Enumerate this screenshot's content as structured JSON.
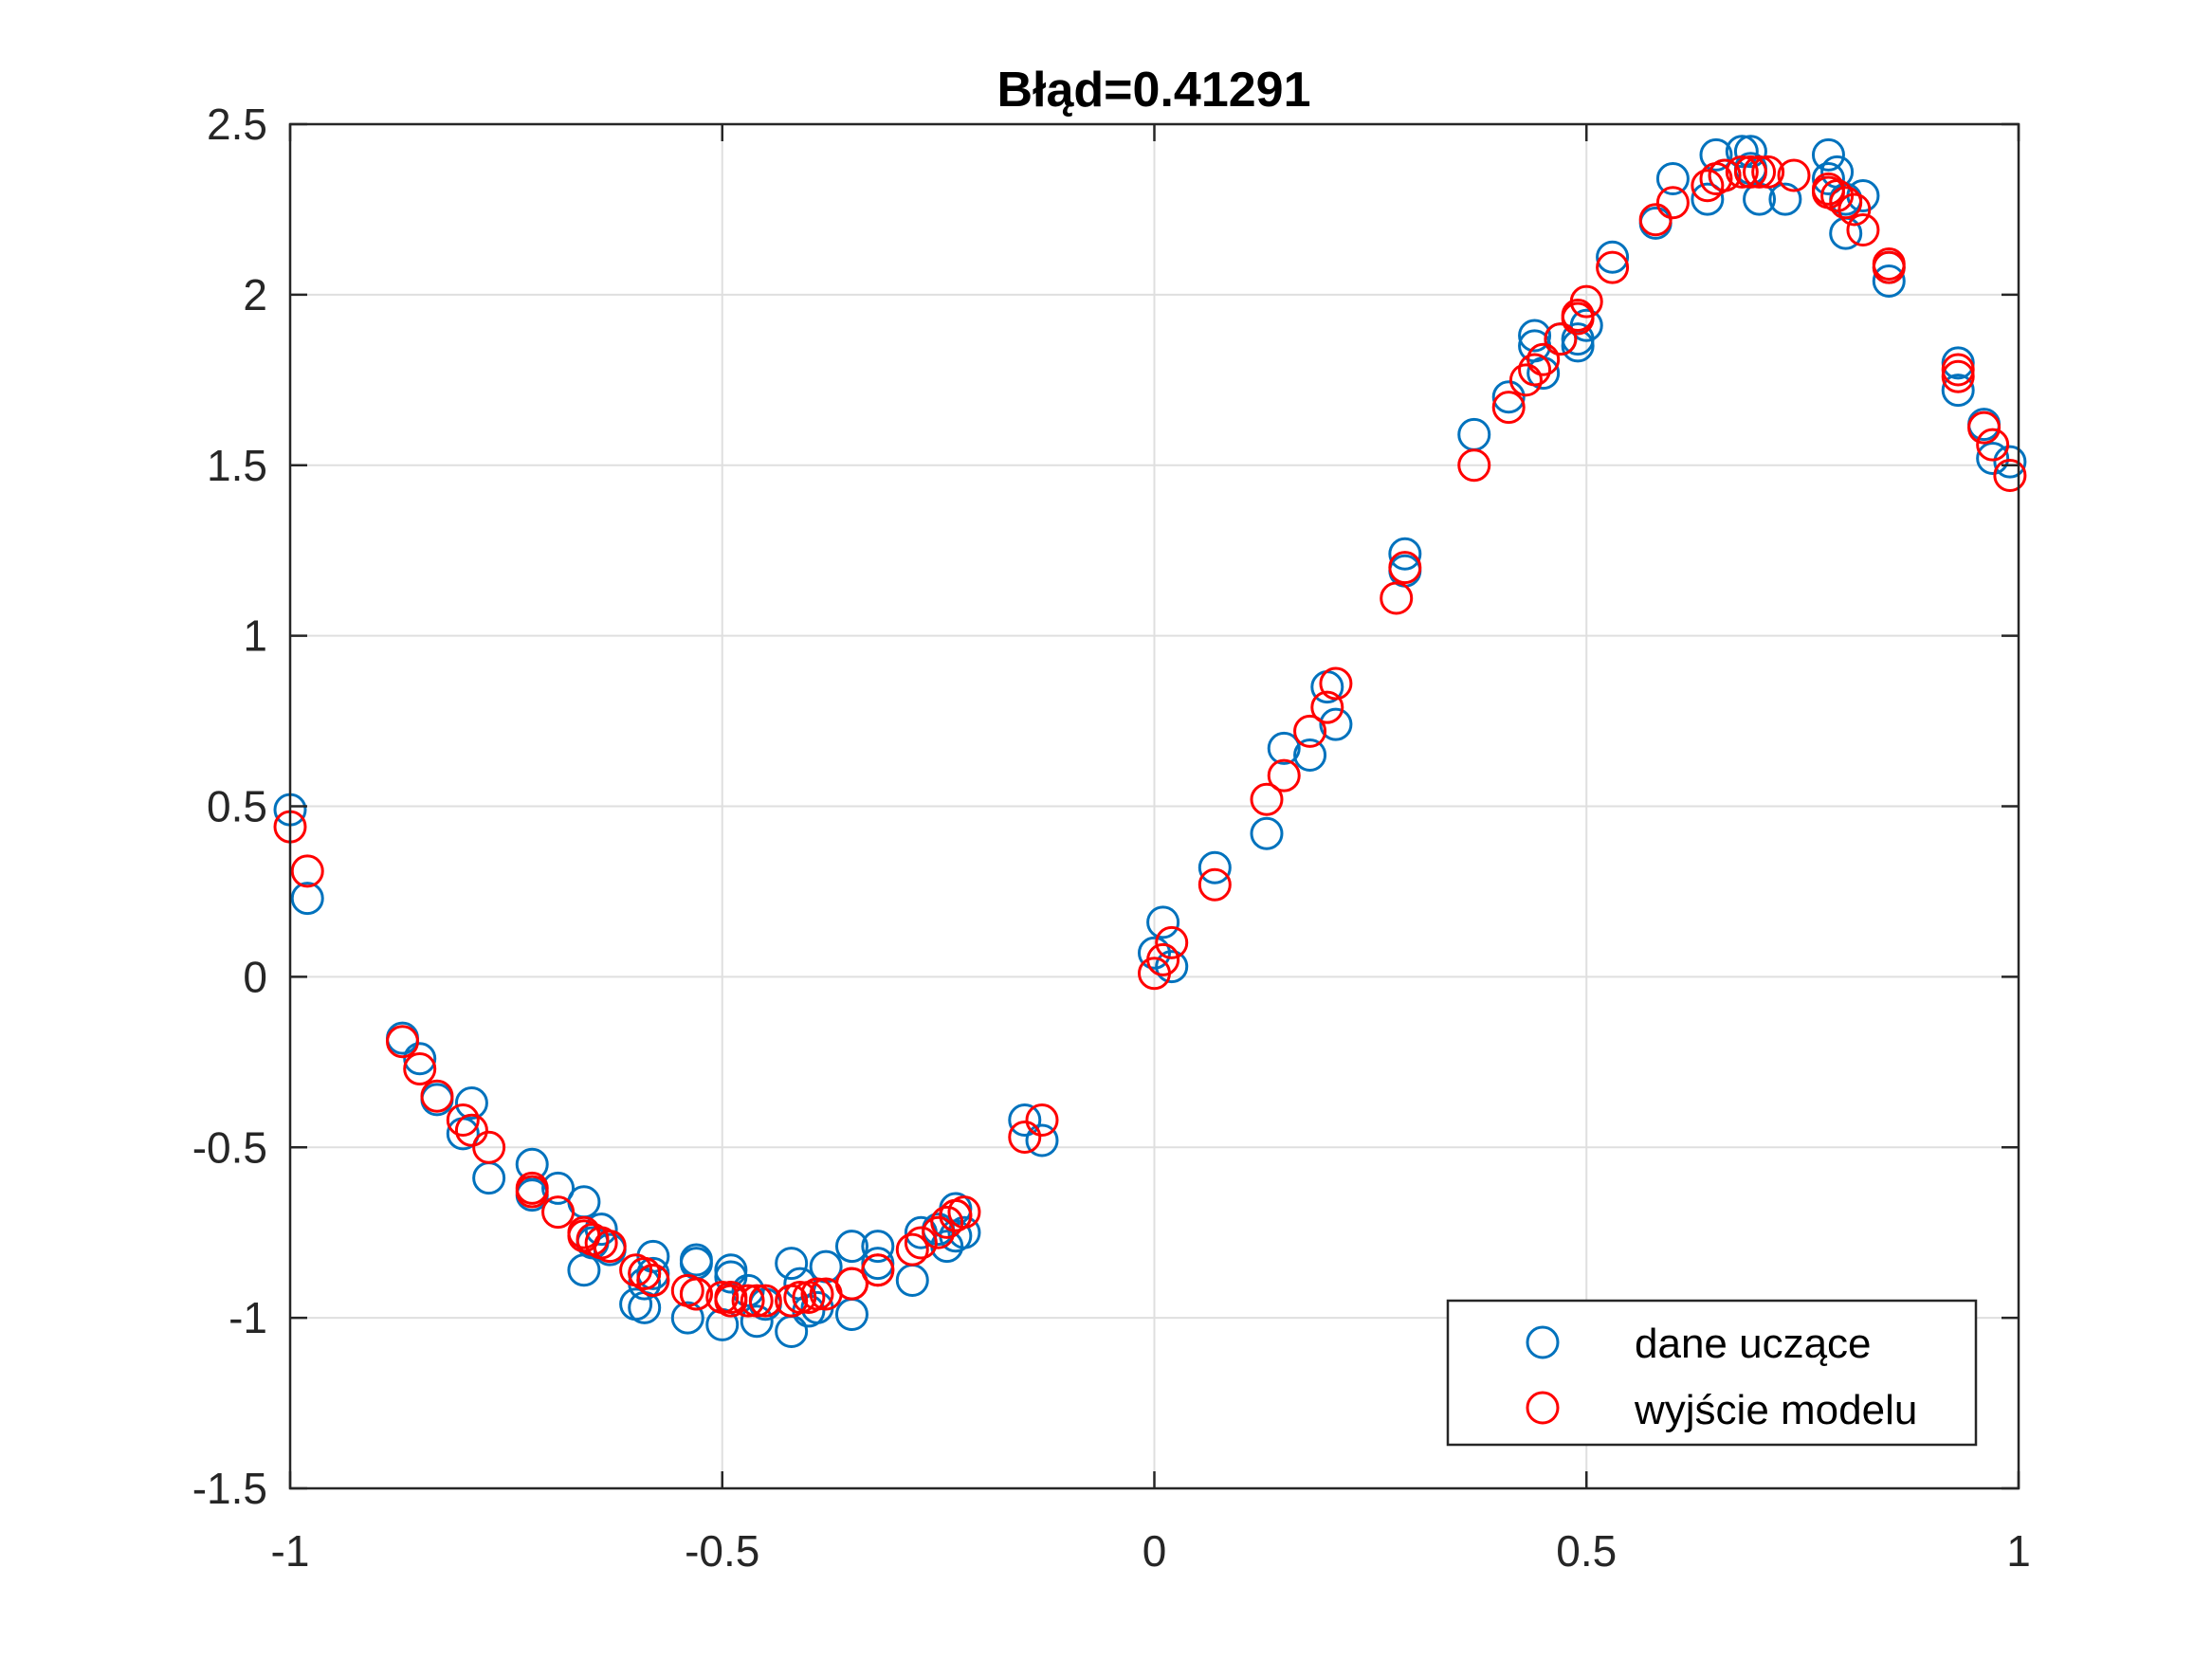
{
  "chart_data": {
    "type": "scatter",
    "title": "Błąd=0.41291",
    "xlabel": "",
    "ylabel": "",
    "xlim": [
      -1,
      1
    ],
    "ylim": [
      -1.5,
      2.5
    ],
    "xticks": [
      -1,
      -0.5,
      0,
      0.5,
      1
    ],
    "xtick_labels": [
      "-1",
      "-0.5",
      "0",
      "0.5",
      "1"
    ],
    "yticks": [
      -1.5,
      -1,
      -0.5,
      0,
      0.5,
      1,
      1.5,
      2,
      2.5
    ],
    "ytick_labels": [
      "-1.5",
      "-1",
      "-0.5",
      "0",
      "0.5",
      "1",
      "1.5",
      "2",
      "2.5"
    ],
    "grid": true,
    "legend_position": "bottom-right",
    "series": [
      {
        "name": "dane uczące",
        "color": "#0072BD",
        "marker": "circle",
        "points": [
          [
            -1.0,
            0.49
          ],
          [
            -0.98,
            0.23
          ],
          [
            -0.87,
            -0.18
          ],
          [
            -0.85,
            -0.24
          ],
          [
            -0.83,
            -0.36
          ],
          [
            -0.8,
            -0.46
          ],
          [
            -0.79,
            -0.37
          ],
          [
            -0.77,
            -0.59
          ],
          [
            -0.72,
            -0.55
          ],
          [
            -0.72,
            -0.64
          ],
          [
            -0.69,
            -0.62
          ],
          [
            -0.66,
            -0.66
          ],
          [
            -0.66,
            -0.86
          ],
          [
            -0.65,
            -0.78
          ],
          [
            -0.64,
            -0.74
          ],
          [
            -0.63,
            -0.8
          ],
          [
            -0.6,
            -0.96
          ],
          [
            -0.59,
            -0.9
          ],
          [
            -0.59,
            -0.97
          ],
          [
            -0.58,
            -0.82
          ],
          [
            -0.58,
            -0.87
          ],
          [
            -0.54,
            -1.0
          ],
          [
            -0.53,
            -0.83
          ],
          [
            -0.53,
            -0.84
          ],
          [
            -0.5,
            -1.02
          ],
          [
            -0.49,
            -0.88
          ],
          [
            -0.49,
            -0.86
          ],
          [
            -0.47,
            -0.92
          ],
          [
            -0.46,
            -1.01
          ],
          [
            -0.45,
            -0.96
          ],
          [
            -0.42,
            -0.84
          ],
          [
            -0.42,
            -1.04
          ],
          [
            -0.41,
            -0.9
          ],
          [
            -0.4,
            -0.98
          ],
          [
            -0.39,
            -0.97
          ],
          [
            -0.38,
            -0.85
          ],
          [
            -0.35,
            -0.79
          ],
          [
            -0.35,
            -0.99
          ],
          [
            -0.32,
            -0.79
          ],
          [
            -0.32,
            -0.84
          ],
          [
            -0.28,
            -0.89
          ],
          [
            -0.27,
            -0.75
          ],
          [
            -0.25,
            -0.74
          ],
          [
            -0.24,
            -0.79
          ],
          [
            -0.23,
            -0.76
          ],
          [
            -0.23,
            -0.68
          ],
          [
            -0.22,
            -0.75
          ],
          [
            -0.15,
            -0.42
          ],
          [
            -0.13,
            -0.48
          ],
          [
            0.0,
            0.07
          ],
          [
            0.01,
            0.16
          ],
          [
            0.02,
            0.03
          ],
          [
            0.07,
            0.32
          ],
          [
            0.13,
            0.42
          ],
          [
            0.15,
            0.67
          ],
          [
            0.18,
            0.65
          ],
          [
            0.2,
            0.85
          ],
          [
            0.21,
            0.74
          ],
          [
            0.29,
            1.24
          ],
          [
            0.29,
            1.19
          ],
          [
            0.37,
            1.59
          ],
          [
            0.41,
            1.7
          ],
          [
            0.44,
            1.88
          ],
          [
            0.44,
            1.85
          ],
          [
            0.45,
            1.77
          ],
          [
            0.47,
            1.87
          ],
          [
            0.49,
            1.85
          ],
          [
            0.49,
            1.87
          ],
          [
            0.5,
            1.91
          ],
          [
            0.53,
            2.11
          ],
          [
            0.58,
            2.21
          ],
          [
            0.6,
            2.34
          ],
          [
            0.64,
            2.28
          ],
          [
            0.65,
            2.41
          ],
          [
            0.66,
            2.35
          ],
          [
            0.68,
            2.42
          ],
          [
            0.69,
            2.37
          ],
          [
            0.69,
            2.42
          ],
          [
            0.7,
            2.28
          ],
          [
            0.73,
            2.28
          ],
          [
            0.78,
            2.34
          ],
          [
            0.78,
            2.41
          ],
          [
            0.79,
            2.36
          ],
          [
            0.8,
            2.18
          ],
          [
            0.8,
            2.28
          ],
          [
            0.82,
            2.29
          ],
          [
            0.85,
            2.08
          ],
          [
            0.85,
            2.04
          ],
          [
            0.93,
            1.8
          ],
          [
            0.93,
            1.72
          ],
          [
            0.96,
            1.62
          ],
          [
            0.97,
            1.52
          ],
          [
            0.99,
            1.51
          ]
        ]
      },
      {
        "name": "wyjście modelu",
        "color": "#FF0000",
        "marker": "circle",
        "points": [
          [
            -1.0,
            0.44
          ],
          [
            -0.98,
            0.31
          ],
          [
            -0.87,
            -0.19
          ],
          [
            -0.85,
            -0.27
          ],
          [
            -0.83,
            -0.35
          ],
          [
            -0.8,
            -0.42
          ],
          [
            -0.79,
            -0.45
          ],
          [
            -0.77,
            -0.5
          ],
          [
            -0.72,
            -0.62
          ],
          [
            -0.72,
            -0.63
          ],
          [
            -0.69,
            -0.69
          ],
          [
            -0.66,
            -0.75
          ],
          [
            -0.66,
            -0.76
          ],
          [
            -0.65,
            -0.77
          ],
          [
            -0.64,
            -0.78
          ],
          [
            -0.63,
            -0.79
          ],
          [
            -0.6,
            -0.86
          ],
          [
            -0.59,
            -0.87
          ],
          [
            -0.59,
            -0.87
          ],
          [
            -0.58,
            -0.89
          ],
          [
            -0.58,
            -0.89
          ],
          [
            -0.54,
            -0.92
          ],
          [
            -0.53,
            -0.93
          ],
          [
            -0.53,
            -0.93
          ],
          [
            -0.5,
            -0.94
          ],
          [
            -0.49,
            -0.94
          ],
          [
            -0.49,
            -0.95
          ],
          [
            -0.47,
            -0.95
          ],
          [
            -0.46,
            -0.95
          ],
          [
            -0.45,
            -0.95
          ],
          [
            -0.42,
            -0.95
          ],
          [
            -0.42,
            -0.95
          ],
          [
            -0.41,
            -0.94
          ],
          [
            -0.4,
            -0.94
          ],
          [
            -0.39,
            -0.93
          ],
          [
            -0.38,
            -0.93
          ],
          [
            -0.35,
            -0.9
          ],
          [
            -0.35,
            -0.9
          ],
          [
            -0.32,
            -0.86
          ],
          [
            -0.32,
            -0.86
          ],
          [
            -0.28,
            -0.8
          ],
          [
            -0.27,
            -0.78
          ],
          [
            -0.25,
            -0.75
          ],
          [
            -0.24,
            -0.72
          ],
          [
            -0.23,
            -0.7
          ],
          [
            -0.23,
            -0.7
          ],
          [
            -0.22,
            -0.69
          ],
          [
            -0.15,
            -0.47
          ],
          [
            -0.13,
            -0.42
          ],
          [
            0.0,
            0.01
          ],
          [
            0.01,
            0.05
          ],
          [
            0.02,
            0.1
          ],
          [
            0.07,
            0.27
          ],
          [
            0.13,
            0.52
          ],
          [
            0.15,
            0.59
          ],
          [
            0.18,
            0.72
          ],
          [
            0.2,
            0.79
          ],
          [
            0.21,
            0.86
          ],
          [
            0.28,
            1.11
          ],
          [
            0.29,
            1.2
          ],
          [
            0.37,
            1.5
          ],
          [
            0.41,
            1.67
          ],
          [
            0.43,
            1.75
          ],
          [
            0.44,
            1.78
          ],
          [
            0.45,
            1.81
          ],
          [
            0.47,
            1.87
          ],
          [
            0.49,
            1.93
          ],
          [
            0.49,
            1.94
          ],
          [
            0.5,
            1.98
          ],
          [
            0.53,
            2.08
          ],
          [
            0.58,
            2.22
          ],
          [
            0.6,
            2.27
          ],
          [
            0.64,
            2.32
          ],
          [
            0.65,
            2.34
          ],
          [
            0.66,
            2.35
          ],
          [
            0.68,
            2.36
          ],
          [
            0.69,
            2.36
          ],
          [
            0.7,
            2.36
          ],
          [
            0.71,
            2.36
          ],
          [
            0.74,
            2.35
          ],
          [
            0.78,
            2.31
          ],
          [
            0.78,
            2.3
          ],
          [
            0.79,
            2.29
          ],
          [
            0.8,
            2.27
          ],
          [
            0.81,
            2.25
          ],
          [
            0.82,
            2.19
          ],
          [
            0.85,
            2.09
          ],
          [
            0.85,
            2.08
          ],
          [
            0.93,
            1.78
          ],
          [
            0.93,
            1.76
          ],
          [
            0.96,
            1.61
          ],
          [
            0.97,
            1.56
          ],
          [
            0.99,
            1.47
          ]
        ]
      }
    ]
  }
}
